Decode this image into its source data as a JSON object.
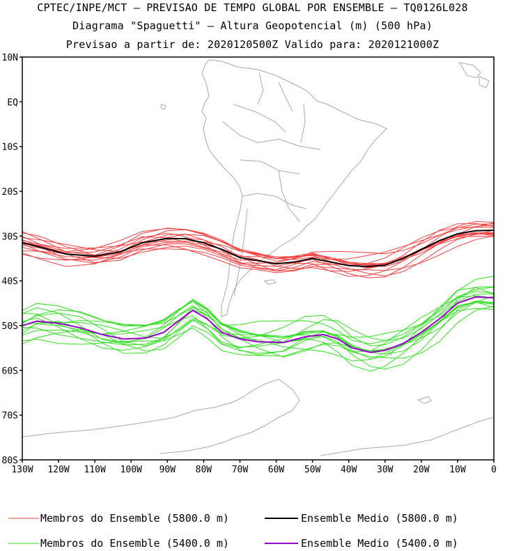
{
  "header": {
    "line1": "CPTEC/INPE/MCT – PREVISAO DE TEMPO GLOBAL POR ENSEMBLE – TQ0126L028",
    "line2": "Diagrama \"Spaguetti\" – Altura Geopotencial (m) (500 hPa)",
    "line3": "Previsao a partir de: 2020120500Z   Valido para: 2020121000Z"
  },
  "axes": {
    "lat_labels": [
      "10N",
      "EQ",
      "10S",
      "20S",
      "30S",
      "40S",
      "50S",
      "60S",
      "70S",
      "80S"
    ],
    "lon_labels": [
      "130W",
      "120W",
      "110W",
      "100W",
      "90W",
      "80W",
      "70W",
      "60W",
      "50W",
      "40W",
      "30W",
      "20W",
      "10W",
      "0"
    ]
  },
  "legend": [
    {
      "label": "Membros do Ensemble (5800.0 m)",
      "color": "#f04040"
    },
    {
      "label": "Ensemble Medio (5800.0 m)",
      "color": "#000000"
    },
    {
      "label": "Membros do Ensemble (5400.0 m)",
      "color": "#33dd22"
    },
    {
      "label": "Ensemble Medio (5400.0 m)",
      "color": "#9900cc"
    }
  ],
  "contours": {
    "h5800_mean": [
      [
        -130,
        -31.5
      ],
      [
        -125,
        -32.5
      ],
      [
        -118,
        -34
      ],
      [
        -110,
        -34.5
      ],
      [
        -103,
        -33.5
      ],
      [
        -97,
        -31.5
      ],
      [
        -90,
        -30.5
      ],
      [
        -85,
        -30.6
      ],
      [
        -80,
        -31.5
      ],
      [
        -75,
        -33
      ],
      [
        -70,
        -34.8
      ],
      [
        -65,
        -35.5
      ],
      [
        -60,
        -36.2
      ],
      [
        -55,
        -35.8
      ],
      [
        -50,
        -35
      ],
      [
        -45,
        -35.8
      ],
      [
        -40,
        -36.6
      ],
      [
        -35,
        -36.8
      ],
      [
        -30,
        -36.5
      ],
      [
        -25,
        -35
      ],
      [
        -20,
        -33
      ],
      [
        -15,
        -31
      ],
      [
        -10,
        -29.5
      ],
      [
        -5,
        -28.8
      ],
      [
        0,
        -28.7
      ]
    ],
    "h5400_mean": [
      [
        -130,
        -50
      ],
      [
        -126,
        -49
      ],
      [
        -120,
        -49.5
      ],
      [
        -114,
        -50.5
      ],
      [
        -108,
        -52
      ],
      [
        -102,
        -53
      ],
      [
        -96,
        -52.8
      ],
      [
        -91,
        -51.5
      ],
      [
        -87,
        -49
      ],
      [
        -83,
        -46.6
      ],
      [
        -79,
        -48.5
      ],
      [
        -75,
        -51.5
      ],
      [
        -70,
        -53
      ],
      [
        -65,
        -53.6
      ],
      [
        -58,
        -53.8
      ],
      [
        -52,
        -52.5
      ],
      [
        -47,
        -52
      ],
      [
        -43,
        -53
      ],
      [
        -39,
        -55
      ],
      [
        -34,
        -56
      ],
      [
        -30,
        -55.5
      ],
      [
        -25,
        -54
      ],
      [
        -20,
        -51.5
      ],
      [
        -15,
        -48.5
      ],
      [
        -10,
        -45
      ],
      [
        -5,
        -43.6
      ],
      [
        0,
        -43.8
      ]
    ],
    "member_count": 14
  }
}
